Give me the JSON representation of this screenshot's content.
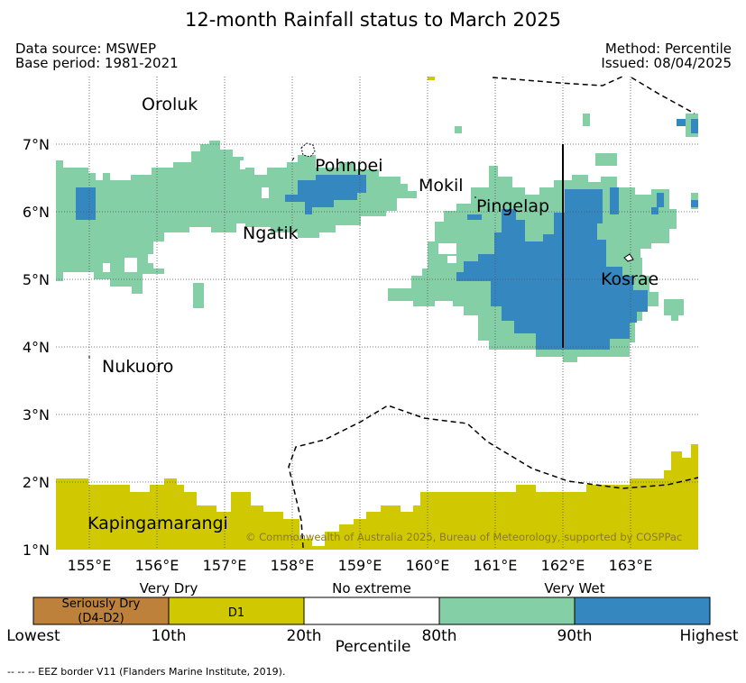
{
  "title": "12-month Rainfall status to March 2025",
  "data_source": "Data source: MSWEP",
  "base_period": "Base period: 1981-2021",
  "method": "Method: Percentile",
  "issued": "Issued: 08/04/2025",
  "map": {
    "lon_ticks": [
      "155°E",
      "156°E",
      "157°E",
      "158°E",
      "159°E",
      "160°E",
      "161°E",
      "162°E",
      "163°E"
    ],
    "lat_ticks": [
      "7°N",
      "6°N",
      "5°N",
      "4°N",
      "3°N",
      "2°N",
      "1°N"
    ],
    "places": {
      "oroluk": "Oroluk",
      "pohnpei": "Pohnpei",
      "mokil": "Mokil",
      "pingelap": "Pingelap",
      "ngatik": "Ngatik",
      "kosrae": "Kosrae",
      "nukuoro": "Nukuoro",
      "kapingamarangi": "Kapingamarangi"
    },
    "copyright": "© Commonwealth of Australia 2025, Bureau of Meteorology, supported by COSPPac",
    "colors": {
      "very_wet": "#84cfa6",
      "highest": "#3587c0",
      "d1": "#d0c800",
      "seriously_dry": "#bd813c",
      "no_extreme": "#ffffff"
    }
  },
  "colorbar": {
    "categories": {
      "very_dry": "Very Dry",
      "no_extreme": "No extreme",
      "very_wet": "Very Wet"
    },
    "boxes": {
      "seriously_dry": "Seriously Dry\n(D4-D2)",
      "d1": "D1"
    },
    "ticks": [
      "Lowest",
      "10th",
      "20th",
      "80th",
      "90th",
      "Highest"
    ],
    "xlabel": "Percentile"
  },
  "footnote": "--  --  -- EEZ border V11 (Flanders Marine Institute, 2019)."
}
